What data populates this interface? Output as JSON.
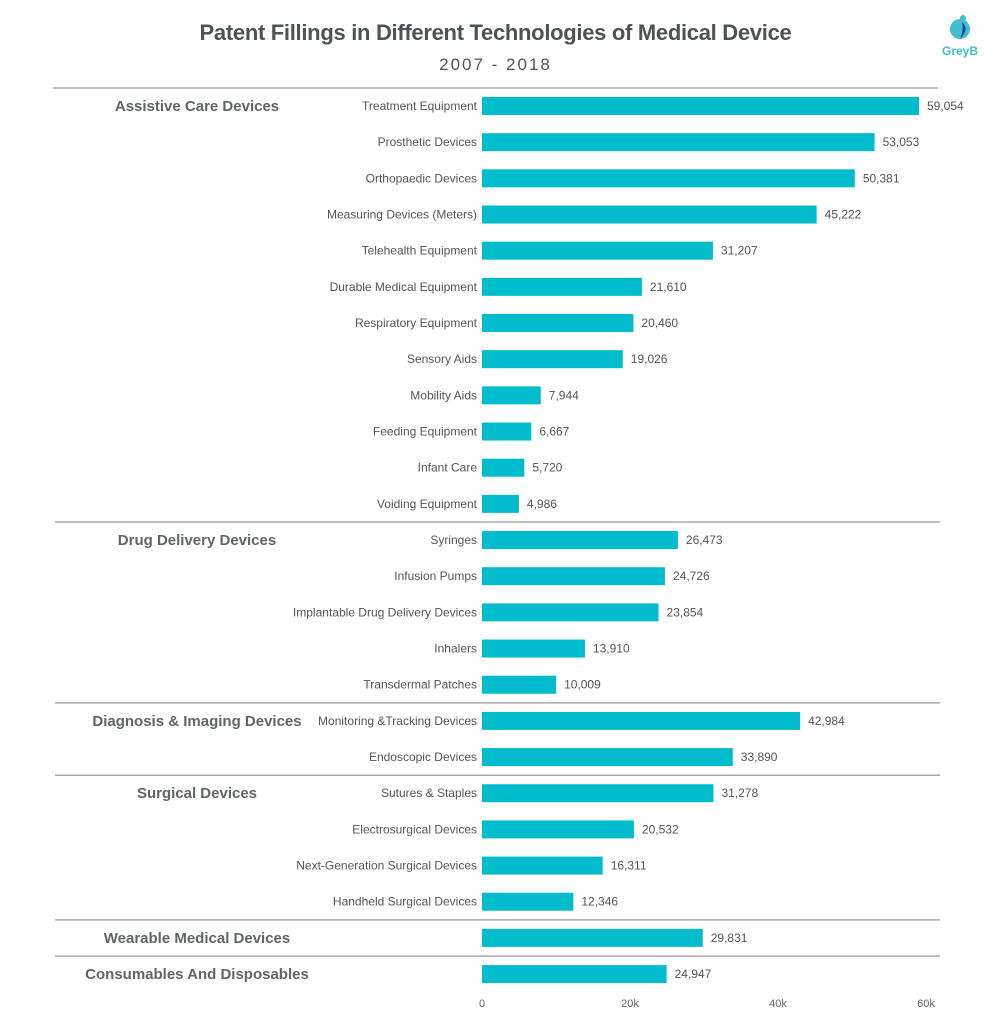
{
  "logo": {
    "text": "GreyB",
    "color": "#3fbfcf"
  },
  "chart_data": {
    "type": "bar",
    "orientation": "horizontal",
    "title": "Patent Fillings in Different Technologies of Medical Device",
    "subtitle": "2007 - 2018",
    "bar_color": "#00bccc",
    "xlim": [
      0,
      60000
    ],
    "x_ticks": [
      0,
      20000,
      40000,
      60000
    ],
    "x_tick_labels": [
      "0",
      "20k",
      "40k",
      "60k"
    ],
    "grid": false,
    "groups": [
      {
        "name": "Assistive Care Devices",
        "items": [
          {
            "label": "Treatment Equipment",
            "value": 59054,
            "value_label": "59,054"
          },
          {
            "label": "Prosthetic Devices",
            "value": 53053,
            "value_label": "53,053"
          },
          {
            "label": "Orthopaedic Devices",
            "value": 50381,
            "value_label": "50,381"
          },
          {
            "label": "Measuring Devices (Meters)",
            "value": 45222,
            "value_label": "45,222"
          },
          {
            "label": "Telehealth Equipment",
            "value": 31207,
            "value_label": "31,207"
          },
          {
            "label": "Durable Medical Equipment",
            "value": 21610,
            "value_label": "21,610"
          },
          {
            "label": "Respiratory Equipment",
            "value": 20460,
            "value_label": "20,460"
          },
          {
            "label": "Sensory Aids",
            "value": 19026,
            "value_label": "19,026"
          },
          {
            "label": "Mobility Aids",
            "value": 7944,
            "value_label": "7,944"
          },
          {
            "label": "Feeding Equipment",
            "value": 6667,
            "value_label": "6,667"
          },
          {
            "label": "Infant Care",
            "value": 5720,
            "value_label": "5,720"
          },
          {
            "label": "Voiding Equipment",
            "value": 4986,
            "value_label": "4,986"
          }
        ]
      },
      {
        "name": "Drug Delivery Devices",
        "items": [
          {
            "label": "Syringes",
            "value": 26473,
            "value_label": "26,473"
          },
          {
            "label": "Infusion Pumps",
            "value": 24726,
            "value_label": "24,726"
          },
          {
            "label": "Implantable Drug Delivery Devices",
            "value": 23854,
            "value_label": "23,854"
          },
          {
            "label": "Inhalers",
            "value": 13910,
            "value_label": "13,910"
          },
          {
            "label": "Transdermal Patches",
            "value": 10009,
            "value_label": "10,009"
          }
        ]
      },
      {
        "name": "Diagnosis & Imaging Devices",
        "items": [
          {
            "label": "Monitoring &Tracking Devices",
            "value": 42984,
            "value_label": "42,984"
          },
          {
            "label": "Endoscopic Devices",
            "value": 33890,
            "value_label": "33,890"
          }
        ]
      },
      {
        "name": "Surgical Devices",
        "items": [
          {
            "label": "Sutures & Staples",
            "value": 31278,
            "value_label": "31,278"
          },
          {
            "label": "Electrosurgical Devices",
            "value": 20532,
            "value_label": "20,532"
          },
          {
            "label": "Next-Generation Surgical Devices",
            "value": 16311,
            "value_label": "16,311"
          },
          {
            "label": "Handheld Surgical Devices",
            "value": 12346,
            "value_label": "12,346"
          }
        ]
      },
      {
        "name": "Wearable Medical Devices",
        "items": [
          {
            "label": "",
            "value": 29831,
            "value_label": "29,831"
          }
        ]
      },
      {
        "name": "Consumables And Disposables",
        "items": [
          {
            "label": "",
            "value": 24947,
            "value_label": "24,947"
          }
        ]
      }
    ]
  }
}
